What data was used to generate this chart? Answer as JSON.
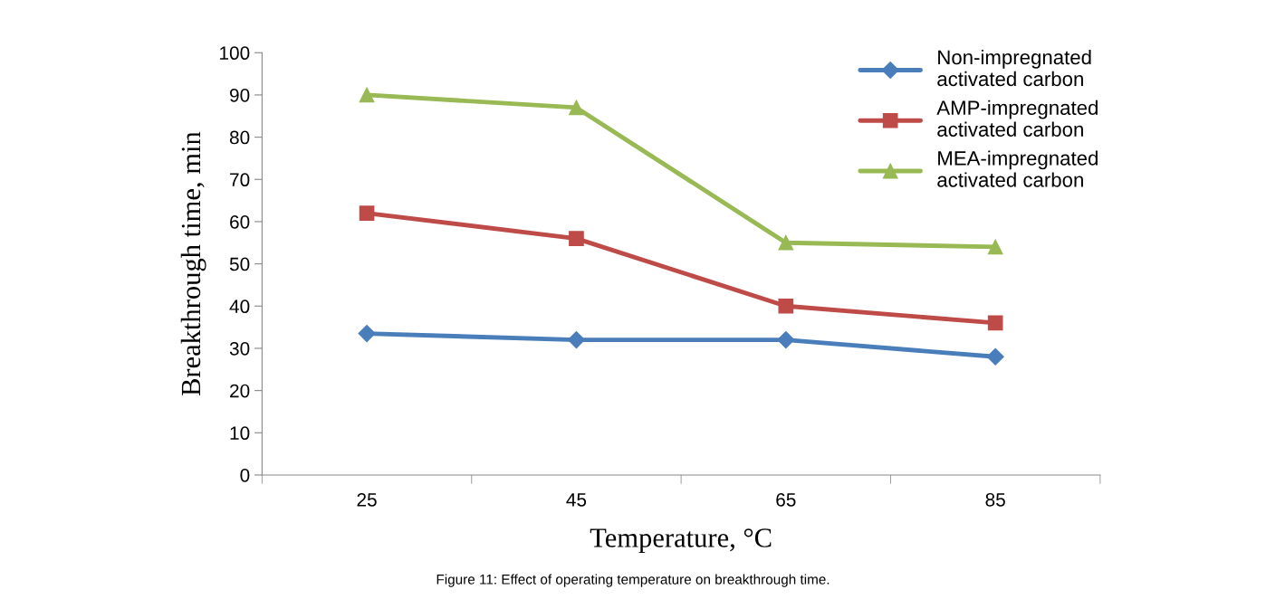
{
  "chart_data": {
    "type": "line",
    "xlabel": "Temperature, °C",
    "ylabel": "Breakthrough time, min",
    "categories": [
      "25",
      "45",
      "65",
      "85"
    ],
    "series": [
      {
        "name": "Non-impregnated\nactivated carbon",
        "color": "#4a7ebb",
        "marker": "diamond",
        "values": [
          33.5,
          32,
          32,
          28
        ]
      },
      {
        "name": "AMP-impregnated\nactivated carbon",
        "color": "#be4b48",
        "marker": "square",
        "values": [
          62,
          56,
          40,
          36
        ]
      },
      {
        "name": "MEA-impregnated\nactivated carbon",
        "color": "#98b954",
        "marker": "triangle",
        "values": [
          90,
          87,
          55,
          54
        ]
      }
    ],
    "ylim": [
      0,
      100
    ],
    "yticks": [
      0,
      10,
      20,
      30,
      40,
      50,
      60,
      70,
      80,
      90,
      100
    ],
    "grid": false,
    "legend": "top right",
    "line_style": "solid",
    "annotations": [
      "Figure 11: Effect of operating temperature on breakthrough time."
    ]
  }
}
